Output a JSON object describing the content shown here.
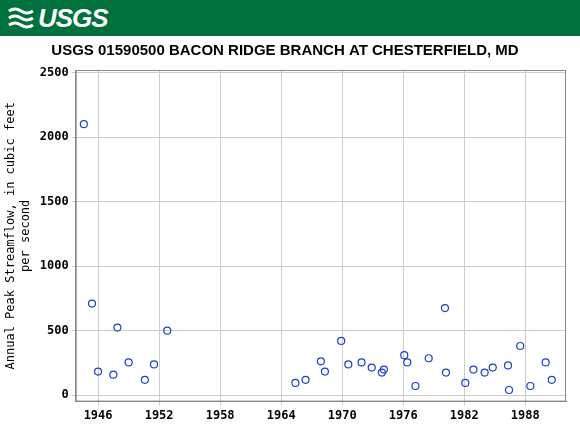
{
  "banner": {
    "text": "USGS"
  },
  "chart_data": {
    "type": "scatter",
    "title": "USGS 01590500 BACON RIDGE BRANCH AT CHESTERFIELD, MD",
    "ylabel": [
      "Annual Peak Streamflow, in cubic feet",
      "per second"
    ],
    "x": [
      1944.6,
      1945.4,
      1946.0,
      1947.5,
      1947.9,
      1949.0,
      1950.6,
      1951.5,
      1952.8,
      1965.4,
      1966.4,
      1967.9,
      1968.3,
      1969.9,
      1970.6,
      1971.9,
      1972.9,
      1973.9,
      1974.1,
      1976.1,
      1976.4,
      1977.2,
      1978.5,
      1980.1,
      1980.2,
      1982.1,
      1982.9,
      1984.0,
      1984.8,
      1986.3,
      1986.4,
      1987.5,
      1988.5,
      1990.0,
      1990.6
    ],
    "values": [
      2100,
      710,
      183,
      159,
      524,
      254,
      119,
      238,
      500,
      95,
      119,
      262,
      183,
      420,
      238,
      254,
      214,
      175,
      198,
      310,
      254,
      71,
      286,
      675,
      175,
      95,
      198,
      175,
      214,
      230,
      40,
      381,
      71,
      254,
      119
    ],
    "color": "#1f3fd0",
    "marker": "open_circle",
    "xlim": [
      1943.8,
      1992
    ],
    "xticks": [
      1946,
      1952,
      1958,
      1964,
      1970,
      1976,
      1982,
      1988
    ],
    "ylim": [
      -50,
      2520
    ],
    "yticks": [
      0,
      500,
      1000,
      1500,
      2000,
      2500
    ],
    "grid": true
  }
}
